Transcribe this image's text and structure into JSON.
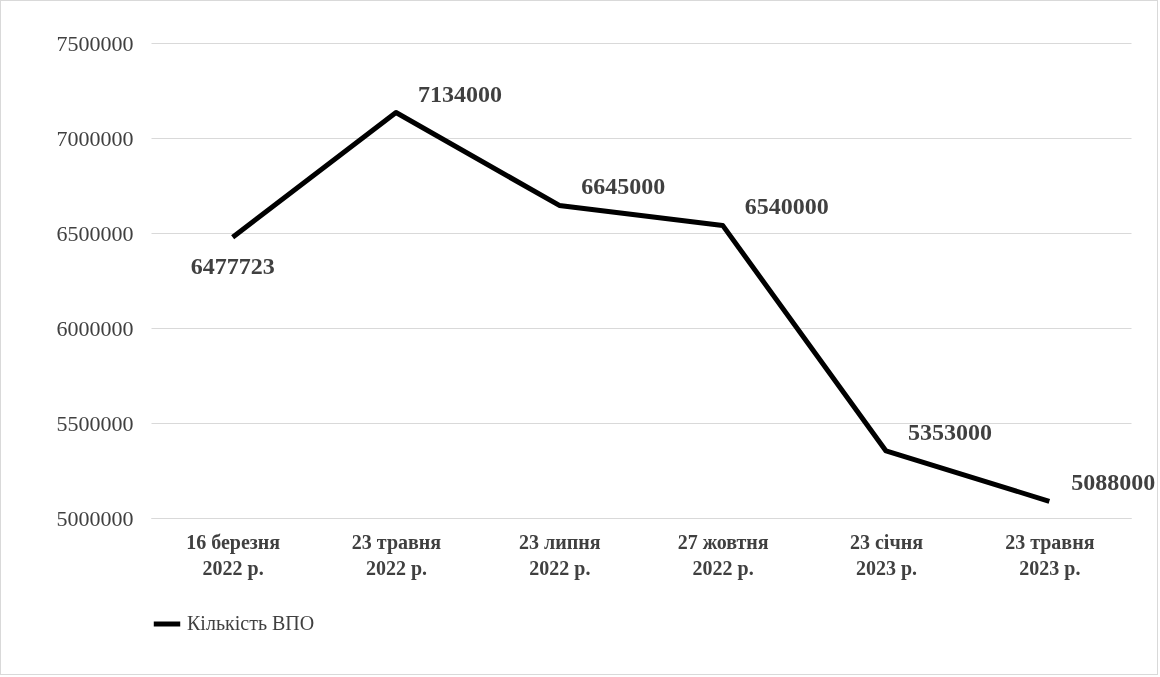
{
  "chart_data": {
    "type": "line",
    "categories": [
      "16 березня 2022 р.",
      "23 травня 2022 р.",
      "23 липня 2022 р.",
      "27 жовтня 2022 р.",
      "23 січня 2023 р.",
      "23 травня 2023 р."
    ],
    "series": [
      {
        "name": "Кількість ВПО",
        "color": "#000000",
        "values": [
          6477723,
          7134000,
          6645000,
          6540000,
          5353000,
          5088000
        ]
      }
    ],
    "ylim": [
      5000000,
      7500000
    ],
    "yticks": [
      5000000,
      5500000,
      6000000,
      6500000,
      7000000,
      7500000
    ],
    "grid": "y",
    "legend": "bottom",
    "data_labels": true,
    "marker": "none"
  }
}
